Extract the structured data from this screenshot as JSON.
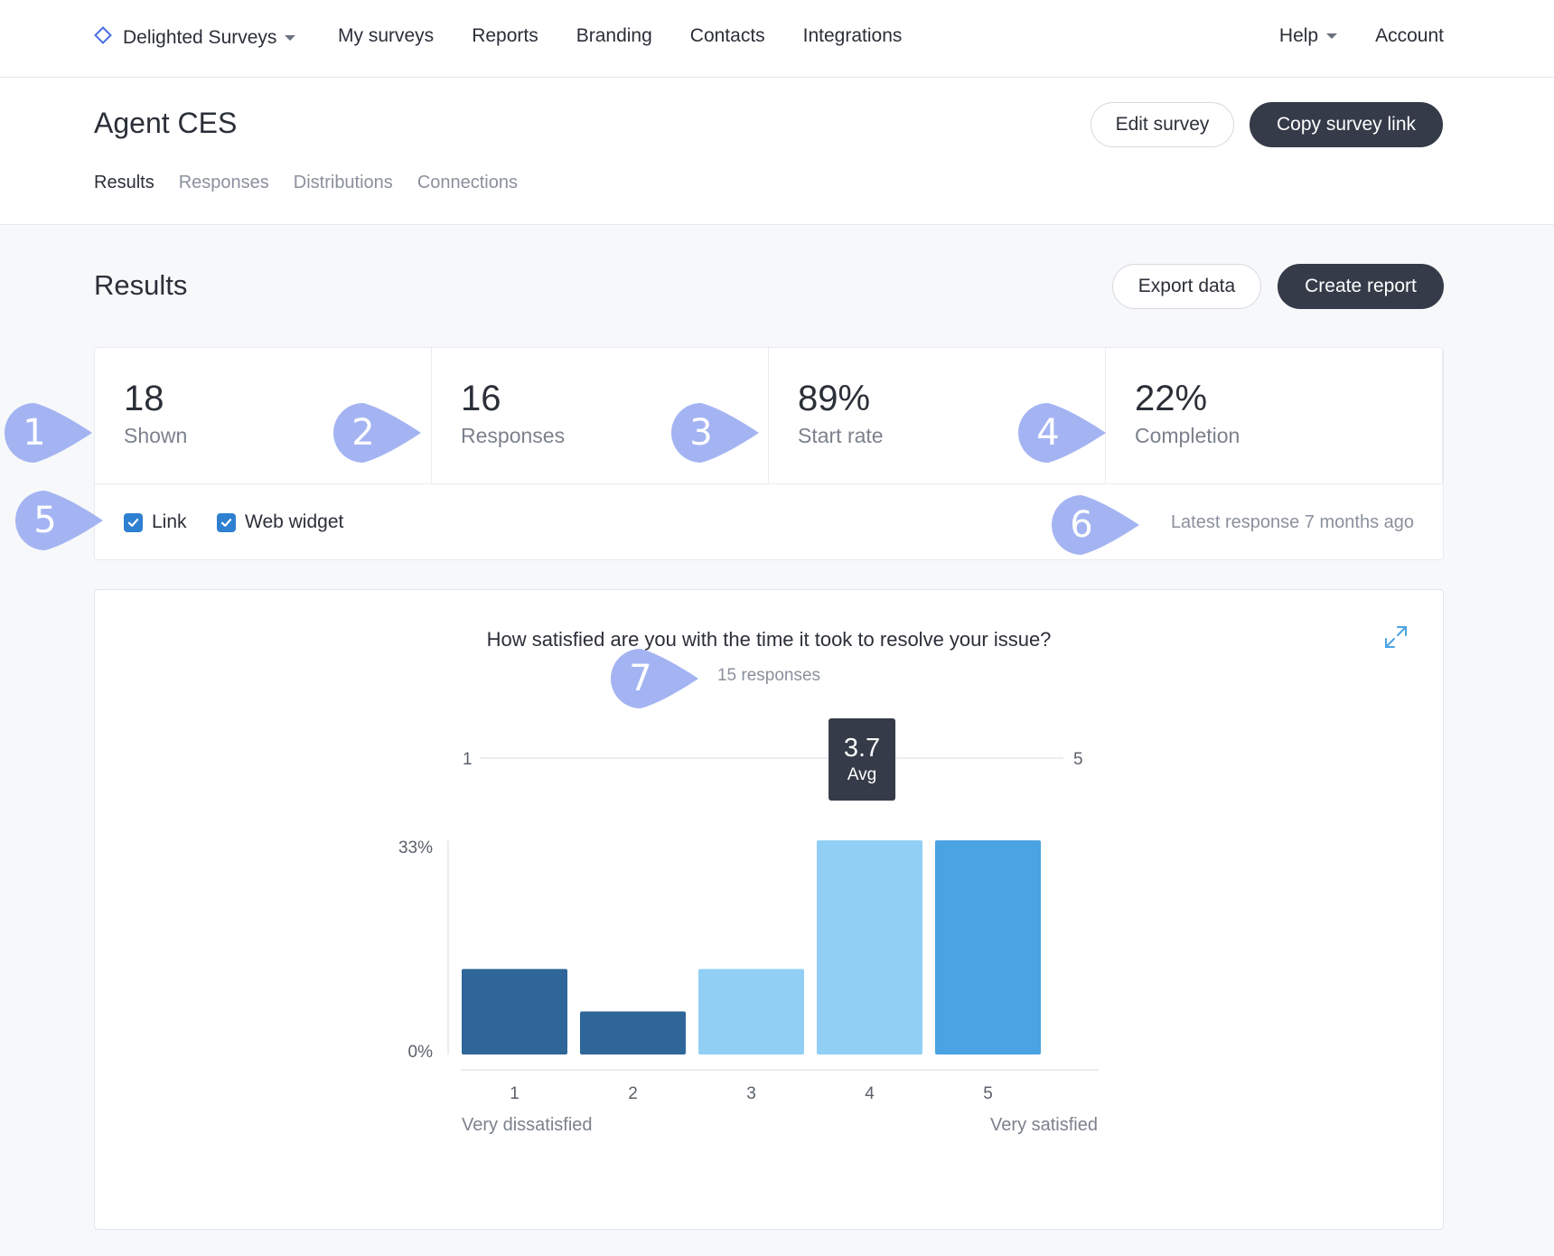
{
  "nav": {
    "brand": "Delighted Surveys",
    "links": [
      "My surveys",
      "Reports",
      "Branding",
      "Contacts",
      "Integrations"
    ],
    "help": "Help",
    "account": "Account"
  },
  "survey": {
    "title": "Agent CES",
    "edit_label": "Edit survey",
    "copy_label": "Copy survey link",
    "tabs": [
      "Results",
      "Responses",
      "Distributions",
      "Connections"
    ],
    "active_tab": "Results"
  },
  "results": {
    "title": "Results",
    "export_label": "Export data",
    "create_report_label": "Create report",
    "stats": [
      {
        "value": "18",
        "label": "Shown"
      },
      {
        "value": "16",
        "label": "Responses"
      },
      {
        "value": "89%",
        "label": "Start rate"
      },
      {
        "value": "22%",
        "label": "Completion"
      }
    ],
    "filters": [
      {
        "label": "Link",
        "checked": true
      },
      {
        "label": "Web widget",
        "checked": true
      }
    ],
    "latest_response": "Latest response 7 months ago"
  },
  "question": {
    "text": "How satisfied are you with the time it took to resolve your issue?",
    "responses": "15 responses"
  },
  "chart_data": {
    "type": "bar",
    "categories": [
      "1",
      "2",
      "3",
      "4",
      "5"
    ],
    "values": [
      13.3,
      6.7,
      13.3,
      33.3,
      33.3
    ],
    "ylim": [
      0,
      33.3
    ],
    "y_ticks": [
      "0%",
      "33%"
    ],
    "bar_colors": [
      "#2e6699",
      "#2e6699",
      "#92cff5",
      "#92cff5",
      "#4aa3e2"
    ],
    "scale_low_label": "Very dissatisfied",
    "scale_high_label": "Very satisfied",
    "average": {
      "value": "3.7",
      "label": "Avg",
      "min": "1",
      "max": "5",
      "numeric": 3.7
    },
    "grid": false
  },
  "annotations": [
    "1",
    "2",
    "3",
    "4",
    "5",
    "6",
    "7"
  ],
  "colors": {
    "marker": "#a4b4f2",
    "dark_button": "#353b48",
    "checkbox": "#2f80d1",
    "brand_icon": "#4a6fe3"
  }
}
